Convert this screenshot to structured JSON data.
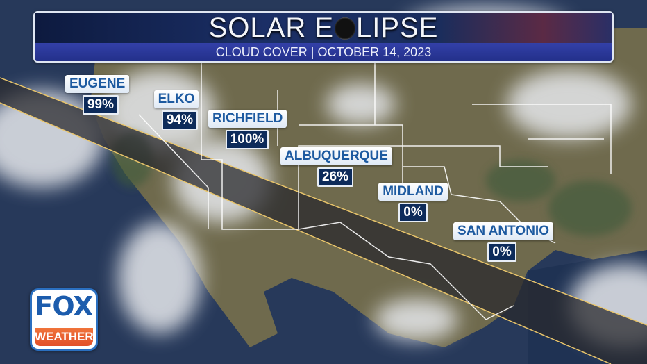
{
  "header": {
    "title_part1": "SOLAR E",
    "title_part2": "LIPSE",
    "subtitle": "CLOUD COVER | OCTOBER 14, 2023"
  },
  "cities": [
    {
      "name": "EUGENE",
      "cloud_cover": "99%"
    },
    {
      "name": "ELKO",
      "cloud_cover": "94%"
    },
    {
      "name": "RICHFIELD",
      "cloud_cover": "100%"
    },
    {
      "name": "ALBUQUERQUE",
      "cloud_cover": "26%"
    },
    {
      "name": "MIDLAND",
      "cloud_cover": "0%"
    },
    {
      "name": "SAN ANTONIO",
      "cloud_cover": "0%"
    }
  ],
  "logo": {
    "top": "FOX",
    "bottom": "WEATHER"
  },
  "colors": {
    "label_text": "#1d5aa0",
    "value_box": "#0d2b5a",
    "eclipse_path_edge": "#e8c46a",
    "banner": "#23308a",
    "logo_orange": "#e2502a"
  }
}
